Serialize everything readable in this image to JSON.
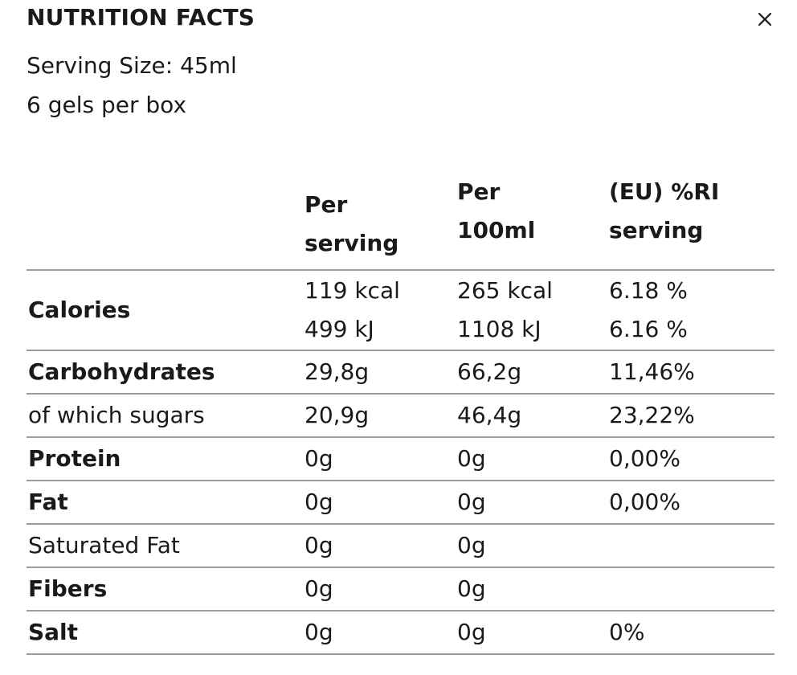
{
  "header": {
    "title": "NUTRITION FACTS",
    "close_icon": "close-icon"
  },
  "serving_size": "Serving Size: 45ml",
  "package": "6 gels per box",
  "table": {
    "columns": {
      "per_serving": [
        "Per",
        "serving"
      ],
      "per_100ml": [
        "Per",
        "100ml"
      ],
      "ri": [
        "(EU) %RI",
        "serving"
      ]
    },
    "calories": {
      "label": "Calories",
      "per_serving": [
        "119 kcal",
        "499 kJ"
      ],
      "per_100ml": [
        "265 kcal",
        "1108 kJ"
      ],
      "ri": [
        "6.18 %",
        "6.16 %"
      ]
    },
    "rows": [
      {
        "label": "Carbohydrates",
        "per_serving": "29,8g",
        "per_100ml": "66,2g",
        "ri": "11,46%"
      },
      {
        "label": "of which sugars",
        "per_serving": "20,9g",
        "per_100ml": "46,4g",
        "ri": "23,22%"
      },
      {
        "label": "Protein",
        "per_serving": "0g",
        "per_100ml": "0g",
        "ri": "0,00%"
      },
      {
        "label": "Fat",
        "per_serving": "0g",
        "per_100ml": "0g",
        "ri": "0,00%"
      },
      {
        "label": "Saturated Fat",
        "per_serving": "0g",
        "per_100ml": "0g",
        "ri": ""
      },
      {
        "label": "Fibers",
        "per_serving": "0g",
        "per_100ml": "0g",
        "ri": ""
      },
      {
        "label": "Salt",
        "per_serving": "0g",
        "per_100ml": "0g",
        "ri": "0%"
      }
    ]
  }
}
